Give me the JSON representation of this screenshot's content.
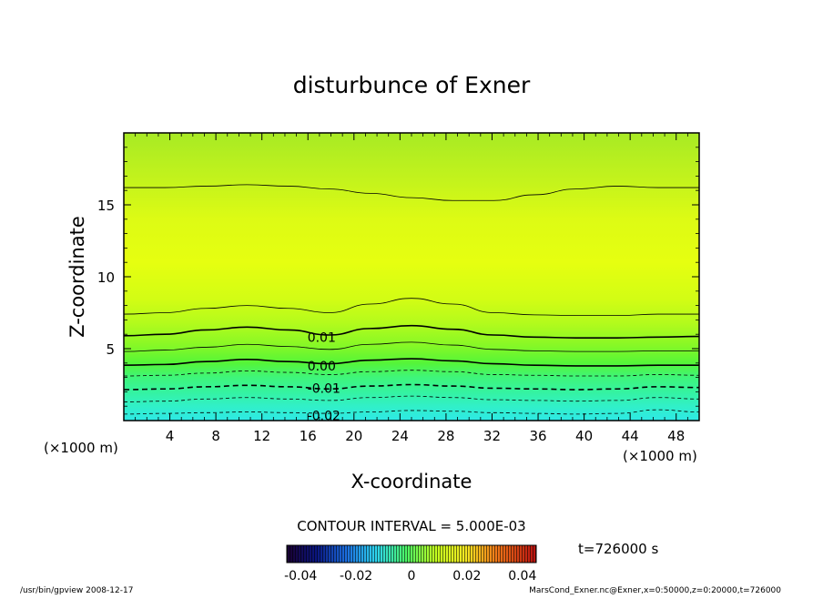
{
  "chart_data": {
    "type": "contour",
    "title": "disturbunce of Exner",
    "xlabel": "X-coordinate",
    "ylabel": "Z-coordinate",
    "x_unit": "(×1000 m)",
    "y_unit": "(×1000 m)",
    "xlim": [
      0,
      50
    ],
    "ylim": [
      0,
      20
    ],
    "x_ticks": [
      4,
      8,
      12,
      16,
      20,
      24,
      28,
      32,
      36,
      40,
      44,
      48
    ],
    "y_ticks": [
      5,
      10,
      15
    ],
    "contour_interval_text": "CONTOUR INTERVAL = 5.000E-03",
    "time_text": "t=726000 s",
    "contour_labels": [
      {
        "text": "0.01",
        "value": 0.01,
        "x": 15.8,
        "z": 5.85
      },
      {
        "text": "0.00",
        "value": 0.0,
        "x": 15.8,
        "z": 3.85
      },
      {
        "text": "-0.01",
        "value": -0.01,
        "x": 15.8,
        "z": 2.3
      },
      {
        "text": "-0.02",
        "value": -0.02,
        "x": 15.8,
        "z": 0.4
      }
    ],
    "contours": [
      {
        "value": -0.02,
        "style": "dashed",
        "z": [
          0.45,
          0.5,
          0.55,
          0.6,
          0.55,
          0.5,
          0.6,
          0.7,
          0.65,
          0.55,
          0.5,
          0.45,
          0.5,
          0.75,
          0.6
        ]
      },
      {
        "value": -0.015,
        "style": "dashed",
        "z": [
          1.3,
          1.35,
          1.5,
          1.6,
          1.5,
          1.4,
          1.6,
          1.7,
          1.6,
          1.45,
          1.4,
          1.35,
          1.4,
          1.6,
          1.5
        ]
      },
      {
        "value": -0.01,
        "style": "dashed",
        "z": [
          2.15,
          2.2,
          2.35,
          2.45,
          2.35,
          2.2,
          2.4,
          2.5,
          2.4,
          2.25,
          2.2,
          2.15,
          2.2,
          2.35,
          2.3
        ]
      },
      {
        "value": -0.005,
        "style": "dashed",
        "z": [
          3.1,
          3.15,
          3.3,
          3.45,
          3.35,
          3.2,
          3.4,
          3.5,
          3.4,
          3.2,
          3.15,
          3.1,
          3.1,
          3.2,
          3.15
        ]
      },
      {
        "value": 0.0,
        "style": "solid",
        "z": [
          3.85,
          3.9,
          4.1,
          4.25,
          4.1,
          3.95,
          4.2,
          4.3,
          4.15,
          3.95,
          3.85,
          3.8,
          3.8,
          3.85,
          3.85
        ]
      },
      {
        "value": 0.005,
        "style": "solid",
        "z": [
          4.8,
          4.9,
          5.1,
          5.3,
          5.15,
          4.95,
          5.3,
          5.45,
          5.25,
          4.95,
          4.85,
          4.8,
          4.8,
          4.85,
          4.85
        ]
      },
      {
        "value": 0.01,
        "style": "solid",
        "z": [
          5.9,
          6.0,
          6.3,
          6.5,
          6.3,
          5.95,
          6.4,
          6.6,
          6.35,
          5.95,
          5.8,
          5.75,
          5.75,
          5.8,
          5.85
        ]
      },
      {
        "value": 0.015,
        "style": "solid",
        "z": [
          7.4,
          7.5,
          7.8,
          8.0,
          7.8,
          7.5,
          8.1,
          8.5,
          8.1,
          7.5,
          7.35,
          7.3,
          7.3,
          7.4,
          7.4
        ]
      },
      {
        "value": 0.015,
        "style": "solid",
        "z": [
          16.2,
          16.2,
          16.3,
          16.4,
          16.3,
          16.1,
          15.8,
          15.5,
          15.3,
          15.3,
          15.7,
          16.1,
          16.3,
          16.2,
          16.2
        ]
      }
    ],
    "colorbar": {
      "ticks": [
        "-0.04",
        "-0.02",
        "0",
        "0.02",
        "0.04"
      ],
      "range": [
        -0.045,
        0.045
      ]
    },
    "footer_left": "/usr/bin/gpview   2008-12-17",
    "footer_right": "MarsCond_Exner.nc@Exner,x=0:50000,z=0:20000,t=726000"
  }
}
